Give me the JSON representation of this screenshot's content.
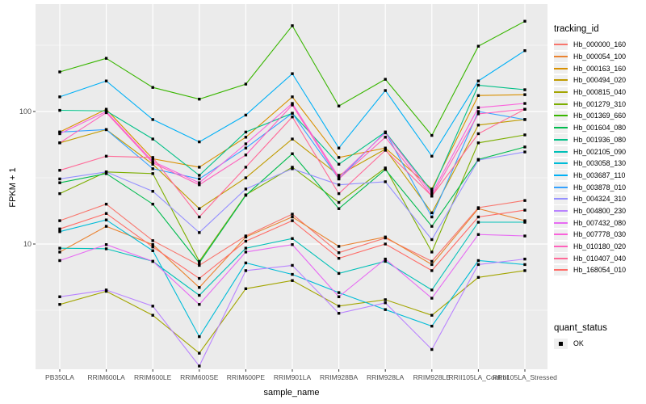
{
  "figure": {
    "legend": {
      "tracking_title": "tracking_id",
      "quant_title": "quant_status",
      "quant_items": [
        {
          "label": "OK"
        }
      ]
    }
  },
  "chart_data": {
    "type": "line",
    "title": "",
    "xlabel": "sample_name",
    "ylabel": "FPKM + 1",
    "y_scale": "log10",
    "ylim": [
      1,
      600
    ],
    "y_ticks": [
      10,
      100
    ],
    "y_minor_gridlines": [
      3.162,
      31.62,
      316.2
    ],
    "grid": true,
    "legend_position": "right",
    "panel_bg": "#EBEBEB",
    "grid_color": "#FFFFFF",
    "axis_text_color": "#4D4D4D",
    "point_shape": "square",
    "point_color": "#000000",
    "quant_status_value": "OK",
    "categories": [
      "PB350LA",
      "RRIM600LA",
      "RRIM600LE",
      "RRIM600SE",
      "RRIM600PE",
      "RRIM901LA",
      "RRIM928BA",
      "RRIM928LA",
      "RRIM928LE",
      "RRII105LA_Control",
      "RRII105LA_Stressed"
    ],
    "series": [
      {
        "name": "Hb_000000_160",
        "color": "#F8766D",
        "values": [
          15,
          20,
          10.6,
          6.9,
          11.5,
          16.8,
          8.6,
          11.1,
          7.4,
          18.8,
          21.3
        ]
      },
      {
        "name": "Hb_000054_100",
        "color": "#EA8331",
        "values": [
          8.7,
          13.6,
          9.9,
          4.7,
          11.3,
          16,
          9.6,
          11.3,
          7,
          18.5,
          15
        ]
      },
      {
        "name": "Hb_000163_160",
        "color": "#D89000",
        "values": [
          70,
          104,
          44,
          38,
          64,
          129,
          45,
          53,
          26,
          132,
          134
        ]
      },
      {
        "name": "Hb_000494_020",
        "color": "#C09B00",
        "values": [
          58,
          73,
          40,
          18.5,
          31.6,
          62,
          33,
          52,
          17.2,
          79,
          87
        ]
      },
      {
        "name": "Hb_000815_040",
        "color": "#A3A500",
        "values": [
          3.5,
          4.4,
          2.9,
          1.5,
          4.6,
          5.3,
          3.4,
          3.8,
          2.9,
          5.6,
          6.3
        ]
      },
      {
        "name": "Hb_001279_310",
        "color": "#7CAE00",
        "values": [
          24,
          35,
          34,
          7.4,
          23.5,
          38,
          20.6,
          37.5,
          8.7,
          58,
          66.6
        ]
      },
      {
        "name": "Hb_001369_660",
        "color": "#39B600",
        "values": [
          199,
          252,
          152,
          124,
          161,
          444,
          110,
          175,
          66,
          311,
          480
        ]
      },
      {
        "name": "Hb_001604_080",
        "color": "#00BB4E",
        "values": [
          29,
          34,
          20,
          7.2,
          23.3,
          48,
          18.5,
          36.5,
          13.6,
          43.5,
          54
        ]
      },
      {
        "name": "Hb_001936_080",
        "color": "#00C087",
        "values": [
          102,
          101,
          62,
          33,
          70,
          97,
          40,
          70,
          25,
          158,
          146
        ]
      },
      {
        "name": "Hb_002105_090",
        "color": "#00C0B8",
        "values": [
          9.3,
          9.2,
          7.4,
          4.1,
          9.3,
          11,
          6,
          7.4,
          4.5,
          14.6,
          14.6
        ]
      },
      {
        "name": "Hb_003058_130",
        "color": "#00BCD8",
        "values": [
          12.4,
          15.2,
          8.9,
          2,
          7.2,
          5.9,
          4.3,
          3.2,
          2.4,
          7.5,
          7
        ]
      },
      {
        "name": "Hb_003687_110",
        "color": "#00B0F6",
        "values": [
          129,
          170,
          87,
          59,
          94,
          193,
          53,
          144,
          46,
          170,
          288
        ]
      },
      {
        "name": "Hb_003878_010",
        "color": "#35A2FF",
        "values": [
          70,
          73,
          37,
          31,
          53,
          97,
          31,
          70,
          16,
          100,
          87
        ]
      },
      {
        "name": "Hb_004324_310",
        "color": "#9590FF",
        "values": [
          31,
          35,
          25,
          12.2,
          26,
          37,
          28,
          29.5,
          10.8,
          43,
          49.5
        ]
      },
      {
        "name": "Hb_004800_230",
        "color": "#B983FF",
        "values": [
          4,
          4.5,
          3.4,
          1.2,
          6.3,
          6.9,
          3,
          3.6,
          1.6,
          7,
          7.7
        ]
      },
      {
        "name": "Hb_007432_080",
        "color": "#E76BF3",
        "values": [
          7.5,
          9.9,
          7.4,
          3.5,
          8.7,
          9.9,
          4,
          7.7,
          3.9,
          11.8,
          11.5
        ]
      },
      {
        "name": "Hb_007778_030",
        "color": "#FA62DB",
        "values": [
          68,
          100,
          42,
          29,
          57,
          115,
          32,
          69,
          24,
          107,
          115
        ]
      },
      {
        "name": "Hb_010180_020",
        "color": "#FF62BC",
        "values": [
          58,
          98,
          41,
          28,
          47,
          112,
          31,
          64,
          23,
          96,
          104
        ]
      },
      {
        "name": "Hb_010407_040",
        "color": "#FF6A98",
        "values": [
          36,
          46,
          45,
          16,
          38,
          91,
          24,
          51,
          23,
          68,
          104
        ]
      },
      {
        "name": "Hb_168054_010",
        "color": "#FF6C67",
        "values": [
          13,
          17,
          9.5,
          5.5,
          10.5,
          15,
          7.8,
          10,
          6.3,
          16,
          18
        ]
      }
    ]
  }
}
